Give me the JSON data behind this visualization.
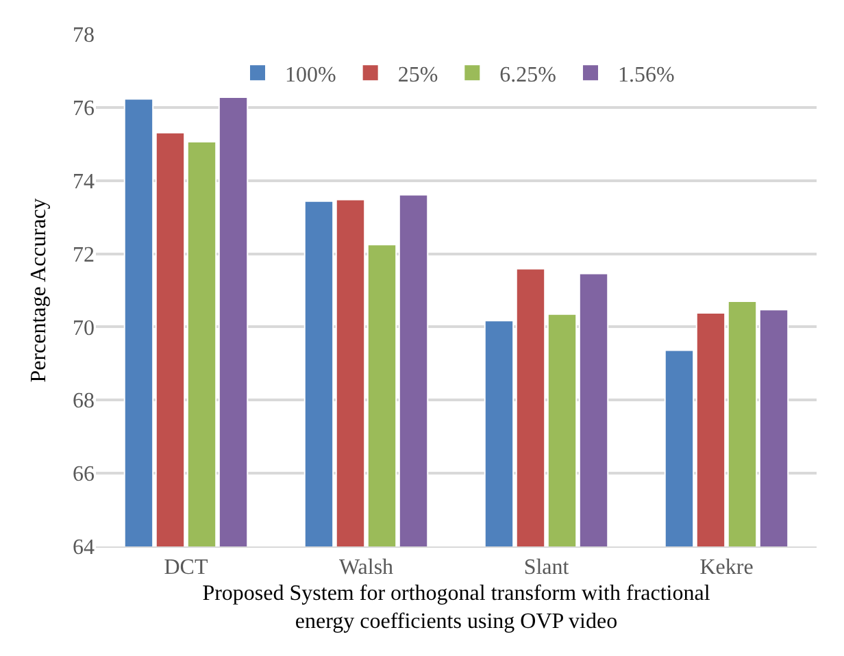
{
  "chart_data": {
    "type": "bar",
    "xlabel": "Proposed System for orthogonal transform with fractional energy coefficients using OVP video",
    "ylabel": "Percentage Accuracy",
    "categories": [
      "DCT",
      "Walsh",
      "Slant",
      "Kekre"
    ],
    "series": [
      {
        "name": "100%",
        "color": "#4f81bd",
        "values": [
          76.23,
          73.44,
          70.17,
          69.36
        ]
      },
      {
        "name": "25%",
        "color": "#c0504d",
        "values": [
          75.31,
          73.48,
          71.59,
          70.38
        ]
      },
      {
        "name": "6.25%",
        "color": "#9bbb59",
        "values": [
          75.06,
          72.25,
          70.35,
          70.7
        ]
      },
      {
        "name": "1.56%",
        "color": "#8064a2",
        "values": [
          76.28,
          73.61,
          71.46,
          70.47
        ]
      }
    ],
    "ylim": [
      64,
      78
    ],
    "yticks": [
      64,
      66,
      68,
      70,
      72,
      74,
      76,
      78
    ],
    "grid": "y",
    "legend": "top"
  }
}
